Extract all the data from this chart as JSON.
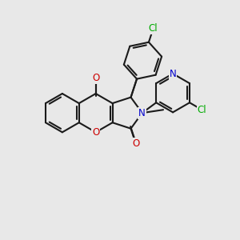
{
  "background_color": "#e8e8e8",
  "bond_color": "#1a1a1a",
  "oxygen_color": "#cc0000",
  "nitrogen_color": "#0000cc",
  "chlorine_color": "#00aa00",
  "bond_width": 1.5,
  "figsize": [
    3.0,
    3.0
  ],
  "dpi": 100,
  "xlim": [
    0,
    10
  ],
  "ylim": [
    0,
    10
  ]
}
